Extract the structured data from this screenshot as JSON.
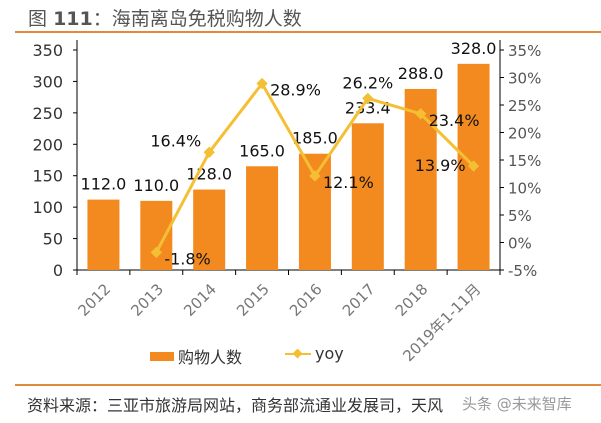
{
  "title_prefix": "图",
  "title_number": "111",
  "title_text": "：海南离岛免税购物人数",
  "source": "资料来源：三亚市旅游局网站，商务部流通业发展司，天风",
  "watermark": "头条 @未来智库",
  "colors": {
    "bar": "#f28a1f",
    "line": "#f5bf34",
    "rule": "#e08a3c"
  },
  "chart_data": {
    "type": "bar+line",
    "categories": [
      "2012",
      "2013",
      "2014",
      "2015",
      "2016",
      "2017",
      "2018",
      "2019年1-11月"
    ],
    "series": [
      {
        "name": "购物人数",
        "type": "bar",
        "axis": "left",
        "values": [
          112.0,
          110.0,
          128.0,
          165.0,
          185.0,
          233.4,
          288.0,
          328.0
        ],
        "labels": [
          "112.0",
          "110.0",
          "128.0",
          "165.0",
          "185.0",
          "233.4",
          "288.0",
          "328.0"
        ]
      },
      {
        "name": "yoy",
        "type": "line",
        "axis": "right",
        "values": [
          null,
          -1.8,
          16.4,
          28.9,
          12.1,
          26.2,
          23.4,
          13.9
        ],
        "labels": [
          "",
          "-1.8%",
          "16.4%",
          "28.9%",
          "12.1%",
          "26.2%",
          "23.4%",
          "13.9%"
        ]
      }
    ],
    "left_axis": {
      "ylim": [
        0,
        350
      ],
      "ticks": [
        "0",
        "50",
        "100",
        "150",
        "200",
        "250",
        "300",
        "350"
      ]
    },
    "right_axis": {
      "ylim": [
        -5,
        35
      ],
      "ticks": [
        "-5%",
        "0%",
        "5%",
        "10%",
        "15%",
        "20%",
        "25%",
        "30%",
        "35%"
      ]
    },
    "grid": false,
    "legend": "bottom"
  }
}
